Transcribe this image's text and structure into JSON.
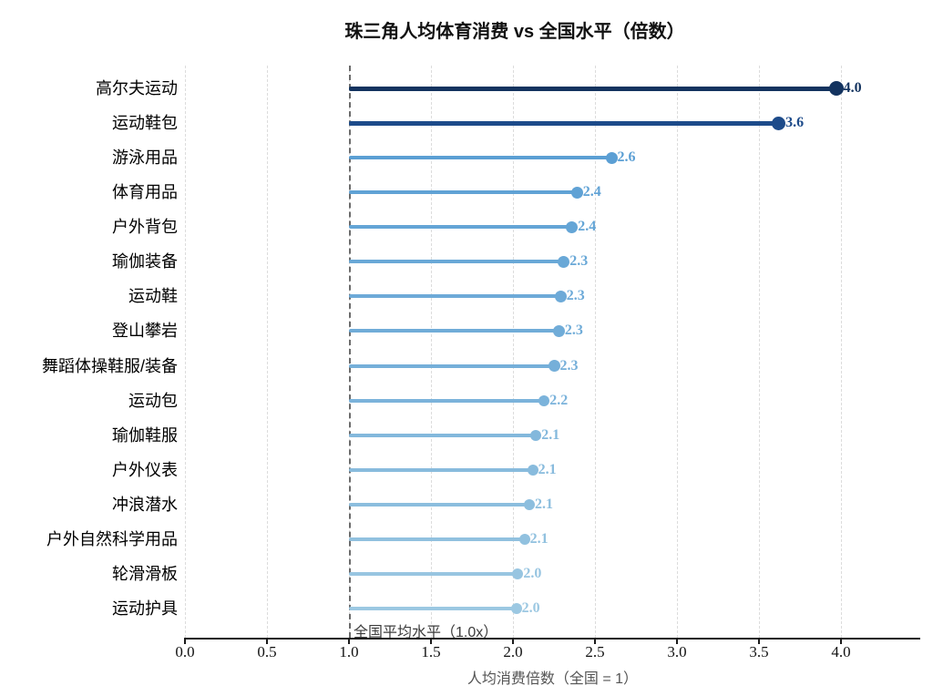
{
  "chart_data": {
    "type": "bar",
    "variant": "horizontal-lollipop",
    "title": "珠三角人均体育消费 vs 全国水平（倍数）",
    "xlabel": "人均消费倍数（全国 = 1）",
    "categories": [
      "高尔夫运动",
      "运动鞋包",
      "游泳用品",
      "体育用品",
      "户外背包",
      "瑜伽装备",
      "运动鞋",
      "登山攀岩",
      "舞蹈体操鞋服/装备",
      "运动包",
      "瑜伽鞋服",
      "户外仪表",
      "冲浪潜水",
      "户外自然科学用品",
      "轮滑滑板",
      "运动护具"
    ],
    "values": [
      3.97,
      3.62,
      2.6,
      2.39,
      2.36,
      2.31,
      2.29,
      2.28,
      2.25,
      2.19,
      2.14,
      2.12,
      2.1,
      2.07,
      2.03,
      2.02
    ],
    "value_labels": [
      "4.0",
      "3.6",
      "2.6",
      "2.4",
      "2.4",
      "2.3",
      "2.3",
      "2.3",
      "2.3",
      "2.2",
      "2.1",
      "2.1",
      "2.1",
      "2.1",
      "2.0",
      "2.0"
    ],
    "colors": [
      "#13335f",
      "#1d4b8a",
      "#5b9fd4",
      "#60a2d5",
      "#64a5d6",
      "#69a8d7",
      "#6daad8",
      "#70acd8",
      "#75afd9",
      "#7bb3db",
      "#83b8dc",
      "#88bbdd",
      "#8cbede",
      "#91c1df",
      "#98c5e1",
      "#9cc8e2"
    ],
    "xlim": [
      0.0,
      4.48
    ],
    "xticks": [
      0.0,
      0.5,
      1.0,
      1.5,
      2.0,
      2.5,
      3.0,
      3.5,
      4.0
    ],
    "xtick_labels": [
      "0.0",
      "0.5",
      "1.0",
      "1.5",
      "2.0",
      "2.5",
      "3.0",
      "3.5",
      "4.0"
    ],
    "baseline": {
      "x": 1.0,
      "label": "全国平均水平（1.0x）"
    },
    "grid": "vertical dashed at every 0.5",
    "legend": "none"
  }
}
